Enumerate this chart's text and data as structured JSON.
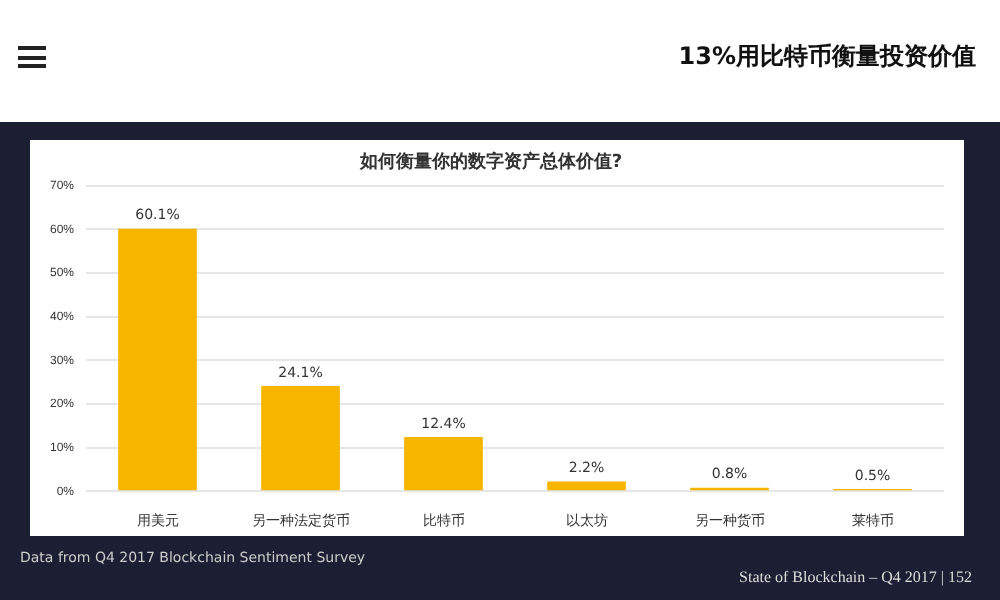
{
  "chart_data": {
    "type": "bar",
    "title": "如何衡量你的数字资产总体价值?",
    "categories": [
      "用美元",
      "另一种法定货币",
      "比特币",
      "以太坊",
      "另一种货币",
      "莱特币"
    ],
    "values": [
      60.1,
      24.1,
      12.4,
      2.2,
      0.8,
      0.5
    ],
    "value_labels": [
      "60.1%",
      "24.1%",
      "12.4%",
      "2.2%",
      "0.8%",
      "0.5%"
    ],
    "color": "#f7b500",
    "ylim": [
      0,
      70
    ],
    "yticks": [
      {
        "value": 0,
        "label": "0%"
      },
      {
        "value": 10,
        "label": "10%"
      },
      {
        "value": 20,
        "label": "20%"
      },
      {
        "value": 30,
        "label": "30%"
      },
      {
        "value": 40,
        "label": "40%"
      },
      {
        "value": 50,
        "label": "50%"
      },
      {
        "value": 60,
        "label": "60%"
      },
      {
        "value": 70,
        "label": "70%"
      }
    ],
    "grid": "y",
    "annotations": [
      "13%用比特币衡量投资价值",
      "Data from Q4 2017 Blockchain Sentiment Survey",
      "State of Blockchain – Q4 2017 | 152"
    ]
  }
}
